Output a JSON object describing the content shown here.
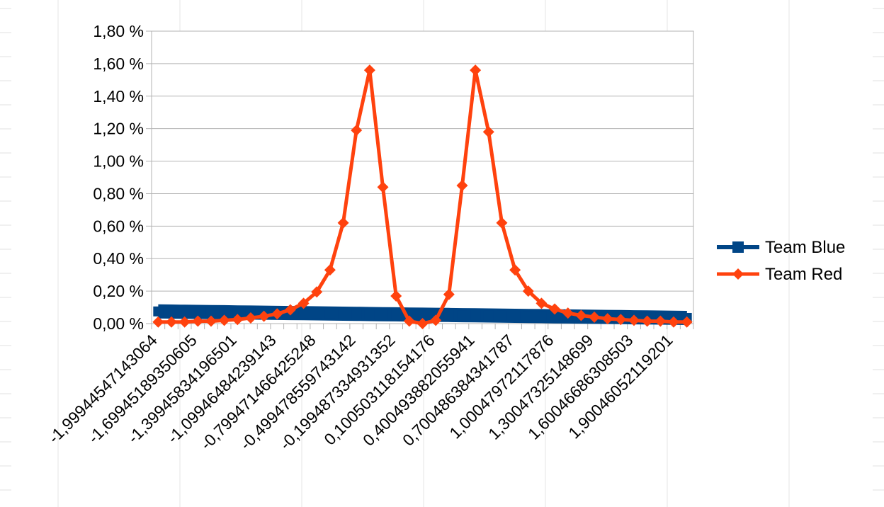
{
  "chart_data": {
    "type": "line",
    "y_tick_labels": [
      "0,00 %",
      "0,20 %",
      "0,40 %",
      "0,60 %",
      "0,80 %",
      "1,00 %",
      "1,20 %",
      "1,40 %",
      "1,60 %",
      "1,80 %"
    ],
    "ylim": [
      0,
      1.8
    ],
    "y_unit": "%",
    "x_tick_labels": [
      "-1,99944547143064",
      "-1,69945189350605",
      "-1,39945834196501",
      "-1,09946484239143",
      "-0,799471466425248",
      "-0,499478559743142",
      "-0,199487334931352",
      "0,100503118154176",
      "0,400493882055941",
      "0,700486384341787",
      "1,00047972117876",
      "1,30047325148699",
      "1,60046686308503",
      "1,90046052119201"
    ],
    "x_label_every": 3,
    "grid": true,
    "legend_position": "right",
    "series": [
      {
        "name": "Team Blue",
        "color": "#004586",
        "marker": "square",
        "values": [
          0.075,
          0.074,
          0.073,
          0.072,
          0.071,
          0.07,
          0.069,
          0.068,
          0.067,
          0.066,
          0.065,
          0.064,
          0.063,
          0.062,
          0.061,
          0.06,
          0.059,
          0.058,
          0.057,
          0.056,
          0.055,
          0.054,
          0.053,
          0.052,
          0.051,
          0.05,
          0.049,
          0.048,
          0.047,
          0.046,
          0.045,
          0.044,
          0.043,
          0.042,
          0.041,
          0.04,
          0.039,
          0.038,
          0.037,
          0.036,
          0.035
        ]
      },
      {
        "name": "Team Red",
        "color": "#ff420e",
        "marker": "diamond",
        "values": [
          0.01,
          0.01,
          0.01,
          0.015,
          0.015,
          0.02,
          0.025,
          0.035,
          0.045,
          0.06,
          0.085,
          0.125,
          0.195,
          0.33,
          0.62,
          1.19,
          1.56,
          0.84,
          0.17,
          0.015,
          0.0,
          0.02,
          0.18,
          0.85,
          1.56,
          1.18,
          0.62,
          0.33,
          0.2,
          0.125,
          0.09,
          0.065,
          0.05,
          0.04,
          0.03,
          0.025,
          0.02,
          0.015,
          0.015,
          0.01,
          0.01
        ]
      }
    ]
  }
}
